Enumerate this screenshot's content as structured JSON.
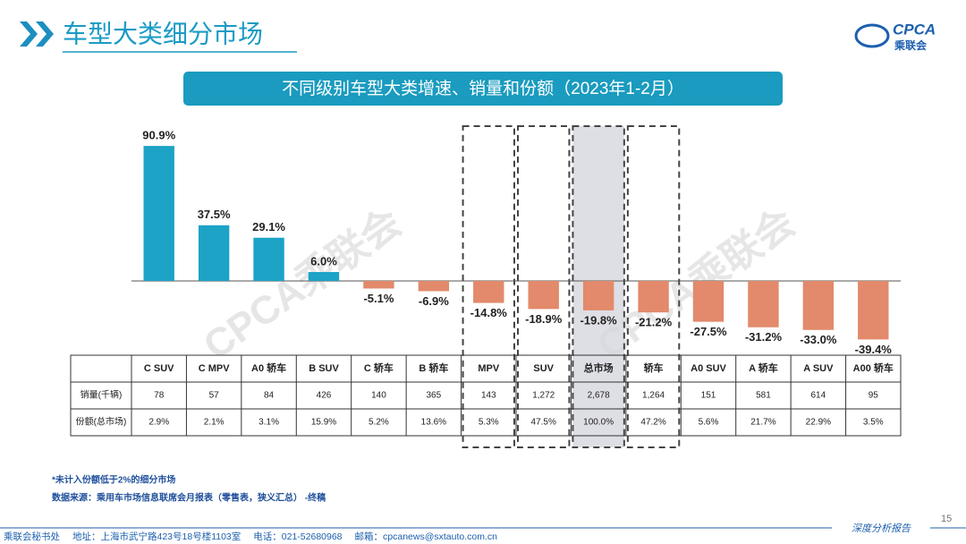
{
  "header": {
    "title": "车型大类细分市场"
  },
  "logo": {
    "text": "CPCA",
    "subtext": "乘联会"
  },
  "watermark": "CPCA乘联会",
  "chart_data": {
    "type": "bar",
    "title": "不同级别车型大类增速、销量和份额（2023年1-2月）",
    "categories": [
      "C SUV",
      "C MPV",
      "A0 轿车",
      "B SUV",
      "C 轿车",
      "B 轿车",
      "MPV",
      "SUV",
      "总市场",
      "轿车",
      "A0 SUV",
      "A 轿车",
      "A SUV",
      "A00 轿车"
    ],
    "values": [
      90.9,
      37.5,
      29.1,
      6.0,
      -5.1,
      -6.9,
      -14.8,
      -18.9,
      -19.8,
      -21.2,
      -27.5,
      -31.2,
      -33.0,
      -39.4
    ],
    "value_labels": [
      "90.9%",
      "37.5%",
      "29.1%",
      "6.0%",
      "-5.1%",
      "-6.9%",
      "-14.8%",
      "-18.9%",
      "-19.8%",
      "-21.2%",
      "-27.5%",
      "-31.2%",
      "-33.0%",
      "-39.4%"
    ],
    "color": "#1ca3c6",
    "negative_color": "#e28a6b"
  },
  "table": {
    "rows": [
      {
        "label": "销量(千辆)",
        "values": [
          "78",
          "57",
          "84",
          "426",
          "140",
          "365",
          "143",
          "1,272",
          "2,678",
          "1,264",
          "151",
          "581",
          "614",
          "95"
        ]
      },
      {
        "label": "份额(总市场)",
        "values": [
          "2.9%",
          "2.1%",
          "3.1%",
          "15.9%",
          "5.2%",
          "13.6%",
          "5.3%",
          "47.5%",
          "100.0%",
          "47.2%",
          "5.6%",
          "21.7%",
          "22.9%",
          "3.5%"
        ]
      }
    ]
  },
  "notes": [
    "*未计入份额低于2%的细分市场",
    "数据来源：乘用车市场信息联席会月报表（零售表，狭义汇总）  -终稿"
  ],
  "footer": {
    "items": [
      "乘联会秘书处",
      "地址：上海市武宁路423号18号楼1103室",
      "电话：021-52680968",
      "邮箱：cpcanews@sxtauto.com.cn"
    ],
    "tag": "深度分析报告",
    "page": "15"
  }
}
